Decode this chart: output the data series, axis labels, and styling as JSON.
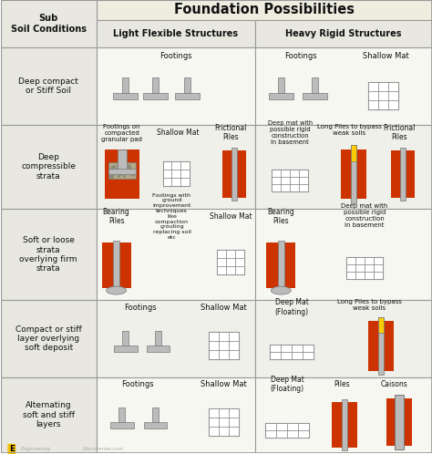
{
  "title": "Foundation Possibilities",
  "col1_header": "Sub\nSoil Conditions",
  "col2_header": "Light Flexible Structures",
  "col3_header": "Heavy Rigid Structures",
  "row_labels": [
    "Deep compact\nor Stiff Soil",
    "Deep\ncompressible\nstrata",
    "Soft or loose\nstrata\noverlying firm\nstrata",
    "Compact or stiff\nlayer overlying\nsoft deposit",
    "Alternating\nsoft and stiff\nlayers"
  ],
  "header_bg": "#e8e8e0",
  "cell_bg": "#f5f5f0",
  "grid_color": "#999999",
  "orange_color": "#cc3300",
  "gray_color": "#aaaaaa",
  "yellow_color": "#ffcc00",
  "light_gray": "#bbbbbb",
  "dark_gray": "#777777",
  "white": "#ffffff"
}
